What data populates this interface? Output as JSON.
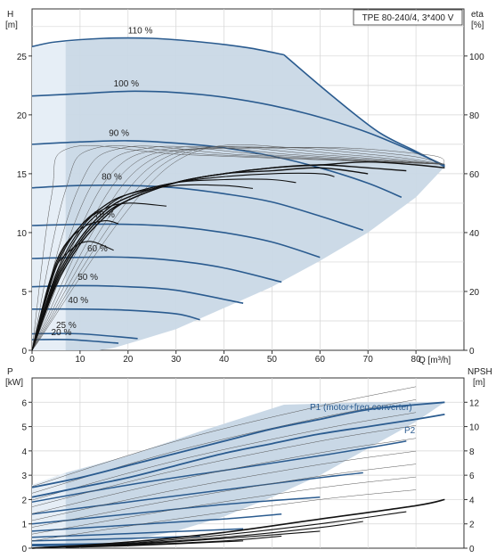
{
  "chart_data": [
    {
      "type": "line",
      "title": "TPE 80-240/4, 3*400 V",
      "xlabel": "Q [m³/h]",
      "ylabel_left": "H",
      "ylabel_left_unit": "[m]",
      "ylabel_right": "eta",
      "ylabel_right_unit": "[%]",
      "xlim": [
        0,
        90
      ],
      "ylim_left": [
        0,
        29
      ],
      "ylim_right": [
        0,
        116
      ],
      "x_ticks": [
        0,
        10,
        20,
        30,
        40,
        50,
        60,
        70,
        80
      ],
      "y_ticks_left": [
        0,
        5,
        10,
        15,
        20,
        25
      ],
      "y_ticks_right": [
        0,
        20,
        40,
        60,
        80,
        100
      ],
      "grid": true,
      "head_curves": [
        {
          "name": "110 %",
          "x": [
            0,
            5,
            15,
            25,
            35,
            45,
            52.5
          ],
          "y": [
            25.8,
            26.2,
            26.5,
            26.5,
            26.2,
            25.7,
            25.1
          ]
        },
        {
          "name": "100 %",
          "x": [
            0,
            10,
            20,
            30,
            40,
            50,
            60,
            70,
            80,
            86
          ],
          "y": [
            21.6,
            21.8,
            22.0,
            21.9,
            21.5,
            20.8,
            19.8,
            18.5,
            16.8,
            15.7
          ]
        },
        {
          "name": "90 %",
          "x": [
            0,
            10,
            20,
            30,
            40,
            50,
            60,
            70,
            77
          ],
          "y": [
            17.5,
            17.7,
            17.8,
            17.6,
            17.2,
            16.5,
            15.5,
            14.2,
            13.0
          ]
        },
        {
          "name": "80 %",
          "x": [
            0,
            10,
            20,
            30,
            40,
            50,
            60,
            69
          ],
          "y": [
            13.8,
            14.0,
            14.0,
            13.8,
            13.3,
            12.6,
            11.4,
            10.2
          ]
        },
        {
          "name": "70 %",
          "x": [
            0,
            10,
            20,
            30,
            40,
            50,
            60
          ],
          "y": [
            10.6,
            10.7,
            10.7,
            10.5,
            10.0,
            9.2,
            7.9
          ]
        },
        {
          "name": "60 %",
          "x": [
            0,
            10,
            20,
            30,
            40,
            52
          ],
          "y": [
            7.8,
            7.9,
            7.9,
            7.6,
            7.0,
            5.8
          ]
        },
        {
          "name": "50 %",
          "x": [
            0,
            10,
            20,
            30,
            44
          ],
          "y": [
            5.4,
            5.5,
            5.4,
            5.1,
            4.0
          ]
        },
        {
          "name": "40 %",
          "x": [
            0,
            10,
            20,
            30,
            35
          ],
          "y": [
            3.5,
            3.5,
            3.4,
            3.1,
            2.6
          ]
        },
        {
          "name": "25 %",
          "x": [
            0,
            10,
            22
          ],
          "y": [
            1.4,
            1.4,
            1.0
          ]
        },
        {
          "name": "20 %",
          "x": [
            0,
            8,
            18
          ],
          "y": [
            0.9,
            0.9,
            0.6
          ]
        }
      ],
      "eta_curves": [
        {
          "x": [
            0,
            5,
            10,
            15,
            20,
            30,
            40,
            50,
            60,
            70,
            80,
            86
          ],
          "y": [
            0,
            22,
            36,
            45,
            51,
            57,
            60,
            62,
            63,
            64,
            63,
            62
          ]
        },
        {
          "x": [
            0,
            5,
            10,
            15,
            20,
            30,
            40,
            50,
            60,
            70,
            78
          ],
          "y": [
            0,
            23,
            37,
            46,
            51,
            57,
            60,
            62,
            63,
            62,
            61
          ]
        },
        {
          "x": [
            0,
            5,
            10,
            15,
            20,
            30,
            40,
            50,
            60,
            70
          ],
          "y": [
            0,
            24,
            38,
            47,
            52,
            57,
            60,
            61,
            62,
            60
          ]
        },
        {
          "x": [
            0,
            5,
            10,
            15,
            20,
            30,
            40,
            50,
            60,
            63
          ],
          "y": [
            0,
            25,
            40,
            48,
            53,
            57,
            59,
            60,
            60,
            59
          ]
        },
        {
          "x": [
            0,
            5,
            10,
            15,
            20,
            30,
            40,
            50,
            55
          ],
          "y": [
            0,
            26,
            41,
            49,
            53,
            57,
            58,
            58,
            57
          ]
        },
        {
          "x": [
            0,
            5,
            10,
            15,
            20,
            30,
            40,
            46
          ],
          "y": [
            0,
            28,
            42,
            49,
            53,
            56,
            56,
            55
          ]
        },
        {
          "x": [
            0,
            5,
            10,
            15,
            20,
            28
          ],
          "y": [
            0,
            29,
            42,
            48,
            50,
            49
          ]
        },
        {
          "x": [
            0,
            5,
            10,
            15,
            18
          ],
          "y": [
            0,
            30,
            41,
            44,
            43
          ]
        },
        {
          "x": [
            0,
            4,
            8,
            12,
            17
          ],
          "y": [
            0,
            25,
            34,
            37,
            34
          ]
        }
      ],
      "annotations": [
        "110 %",
        "100 %",
        "90 %",
        "80 %",
        "70 %",
        "60 %",
        "50 %",
        "40 %",
        "25 %",
        "20 %"
      ]
    },
    {
      "type": "line",
      "xlabel": "",
      "ylabel_left": "P",
      "ylabel_left_unit": "[kW]",
      "ylabel_right": "NPSH",
      "ylabel_right_unit": "[m]",
      "xlim": [
        0,
        90
      ],
      "ylim_left": [
        0,
        7
      ],
      "ylim_right": [
        0,
        14
      ],
      "y_ticks_left": [
        0,
        1,
        2,
        3,
        4,
        5,
        6
      ],
      "y_ticks_right": [
        0,
        2,
        4,
        6,
        8,
        10,
        12
      ],
      "grid": true,
      "series": [
        {
          "name": "P1 (motor+freq.converter)",
          "x": [
            0,
            10,
            20,
            30,
            40,
            50,
            60,
            70,
            80,
            86
          ],
          "y": [
            2.5,
            2.9,
            3.4,
            3.9,
            4.4,
            4.9,
            5.3,
            5.7,
            5.9,
            6.0
          ]
        },
        {
          "name": "P2",
          "x": [
            0,
            10,
            20,
            30,
            40,
            50,
            60,
            70,
            80,
            86
          ],
          "y": [
            2.1,
            2.5,
            2.9,
            3.4,
            3.9,
            4.3,
            4.7,
            5.0,
            5.3,
            5.5
          ]
        },
        {
          "name": "NPSH",
          "x": [
            0,
            20,
            40,
            60,
            80,
            86
          ],
          "y": [
            0,
            0.5,
            1.3,
            2.4,
            3.5,
            4.0
          ]
        }
      ],
      "p1_speed_curves": [
        {
          "x": [
            0,
            20,
            40,
            60,
            78
          ],
          "y": [
            1.9,
            2.6,
            3.2,
            3.8,
            4.4
          ]
        },
        {
          "x": [
            0,
            20,
            40,
            60,
            69
          ],
          "y": [
            1.4,
            1.9,
            2.4,
            2.9,
            3.1
          ]
        },
        {
          "x": [
            0,
            20,
            40,
            60
          ],
          "y": [
            1.0,
            1.4,
            1.8,
            2.1
          ]
        },
        {
          "x": [
            0,
            20,
            40,
            52
          ],
          "y": [
            0.7,
            0.95,
            1.2,
            1.4
          ]
        },
        {
          "x": [
            0,
            20,
            44
          ],
          "y": [
            0.45,
            0.6,
            0.8
          ]
        },
        {
          "x": [
            0,
            20,
            35
          ],
          "y": [
            0.3,
            0.4,
            0.5
          ]
        },
        {
          "x": [
            0,
            22
          ],
          "y": [
            0.15,
            0.2
          ]
        },
        {
          "x": [
            0,
            18
          ],
          "y": [
            0.1,
            0.13
          ]
        }
      ],
      "npsh_speed_curves": [
        {
          "x": [
            0,
            20,
            40,
            60,
            78
          ],
          "y": [
            0,
            0.4,
            1.1,
            2.0,
            3.0
          ]
        },
        {
          "x": [
            0,
            20,
            40,
            60,
            69
          ],
          "y": [
            0,
            0.35,
            0.9,
            1.7,
            2.2
          ]
        },
        {
          "x": [
            0,
            20,
            40,
            60
          ],
          "y": [
            0,
            0.3,
            0.8,
            1.4
          ]
        },
        {
          "x": [
            0,
            20,
            40,
            52
          ],
          "y": [
            0,
            0.25,
            0.6,
            1.0
          ]
        },
        {
          "x": [
            0,
            20,
            44
          ],
          "y": [
            0,
            0.2,
            0.6
          ]
        }
      ]
    }
  ],
  "colors": {
    "curve": "#2a5b8f",
    "fill": "#c9d8e6",
    "eta": "#111111",
    "thin": "#555555",
    "grid": "#d5d5d5"
  }
}
